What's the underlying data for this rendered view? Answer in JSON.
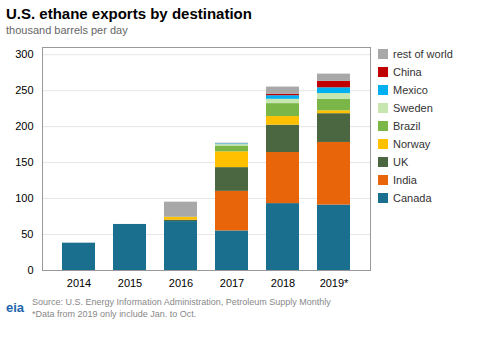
{
  "chart_data": {
    "type": "bar",
    "stacked": true,
    "title": "U.S. ethane exports by destination",
    "subtitle": "thousand barrels per day",
    "categories": [
      "2014",
      "2015",
      "2016",
      "2017",
      "2018",
      "2019*"
    ],
    "series": [
      {
        "name": "Canada",
        "color": "#1a6e8e",
        "values": [
          38,
          64,
          68,
          55,
          93,
          91
        ]
      },
      {
        "name": "India",
        "color": "#e8650a",
        "values": [
          0,
          0,
          0,
          55,
          71,
          87
        ]
      },
      {
        "name": "UK",
        "color": "#4a6741",
        "values": [
          0,
          0,
          2,
          33,
          38,
          40
        ]
      },
      {
        "name": "Norway",
        "color": "#ffc000",
        "values": [
          0,
          0,
          4,
          22,
          12,
          4
        ]
      },
      {
        "name": "Brazil",
        "color": "#7ab648",
        "values": [
          0,
          0,
          0,
          8,
          18,
          16
        ]
      },
      {
        "name": "Sweden",
        "color": "#c8e6b0",
        "values": [
          0,
          0,
          0,
          2,
          6,
          8
        ]
      },
      {
        "name": "Mexico",
        "color": "#00b0f0",
        "values": [
          0,
          0,
          0,
          1,
          5,
          8
        ]
      },
      {
        "name": "China",
        "color": "#c00000",
        "values": [
          0,
          0,
          0,
          0,
          2,
          9
        ]
      },
      {
        "name": "rest of world",
        "color": "#a8a8a8",
        "values": [
          0,
          0,
          21,
          1,
          10,
          10
        ]
      }
    ],
    "ylim": [
      0,
      310
    ],
    "yticks": [
      0,
      50,
      100,
      150,
      200,
      250,
      300
    ],
    "grid": true,
    "legend": "right",
    "source": "Source: U.S. Energy Information Administration, Petroleum Supply Monthly",
    "note": "*Data from 2019 only include Jan. to Oct.",
    "logo": "eia"
  }
}
